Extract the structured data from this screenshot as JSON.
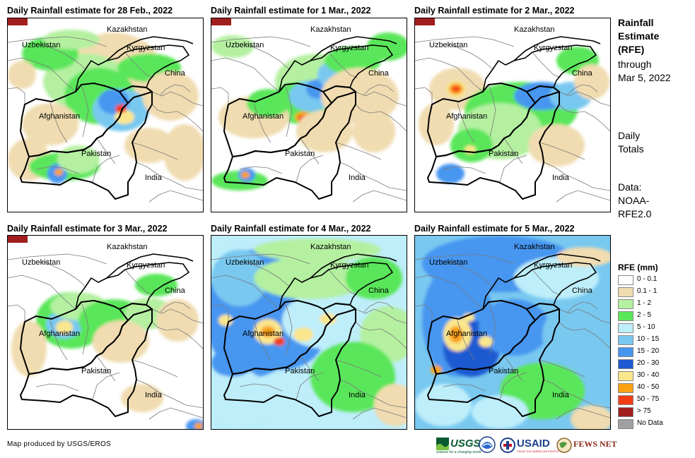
{
  "panels": [
    {
      "title": "Daily Rainfall estimate for 28 Feb., 2022",
      "scene": "feb28"
    },
    {
      "title": "Daily Rainfall estimate for 1 Mar., 2022",
      "scene": "mar1"
    },
    {
      "title": "Daily Rainfall estimate for 2 Mar., 2022",
      "scene": "mar2"
    },
    {
      "title": "Daily Rainfall estimate for 3 Mar., 2022",
      "scene": "mar3"
    },
    {
      "title": "Daily Rainfall estimate for 4 Mar., 2022",
      "scene": "mar4"
    },
    {
      "title": "Daily Rainfall estimate for 5 Mar., 2022",
      "scene": "mar5"
    }
  ],
  "map_labels": {
    "kazakhstan": "Kazakhstan",
    "uzbekistan": "Uzbekistan",
    "kyrgyzstan": "Kyrgyzstan",
    "china": "China",
    "afghanistan": "Afghanistan",
    "pakistan": "Pakistan",
    "india": "India"
  },
  "sidebar": {
    "title_lines": [
      "Rainfall",
      "Estimate",
      "(RFE)"
    ],
    "through_lines": [
      "through",
      "Mar 5, 2022"
    ],
    "daily_lines": [
      "Daily",
      "Totals"
    ],
    "data_lines": [
      "Data:",
      "NOAA-",
      "RFE2.0"
    ]
  },
  "legend": {
    "title": "RFE (mm)",
    "items": [
      {
        "label": "0 - 0.1",
        "color": "#ffffff"
      },
      {
        "label": "0.1 - 1",
        "color": "#f0dcb0"
      },
      {
        "label": "1 - 2",
        "color": "#b4f0a0"
      },
      {
        "label": "2 - 5",
        "color": "#5ae65a"
      },
      {
        "label": "5 - 10",
        "color": "#bdeefa"
      },
      {
        "label": "10 - 15",
        "color": "#78c8f0"
      },
      {
        "label": "15 - 20",
        "color": "#4696f0"
      },
      {
        "label": "20 - 30",
        "color": "#1e5ad2"
      },
      {
        "label": "30 - 40",
        "color": "#fae68c"
      },
      {
        "label": "40 - 50",
        "color": "#faa014"
      },
      {
        "label": "50 - 75",
        "color": "#f03c14"
      },
      {
        "label": "> 75",
        "color": "#a01e1e"
      },
      {
        "label": "No Data",
        "color": "#a0a0a0"
      }
    ]
  },
  "credit": "Map produced by USGS/EROS",
  "logos": {
    "usgs": "USGS",
    "usgs_tag": "science for a changing world",
    "noaa": "NOAA",
    "usaid": "USAID",
    "usaid_tag": "FROM THE AMERICAN PEOPLE",
    "fews": "FEWS NET"
  }
}
